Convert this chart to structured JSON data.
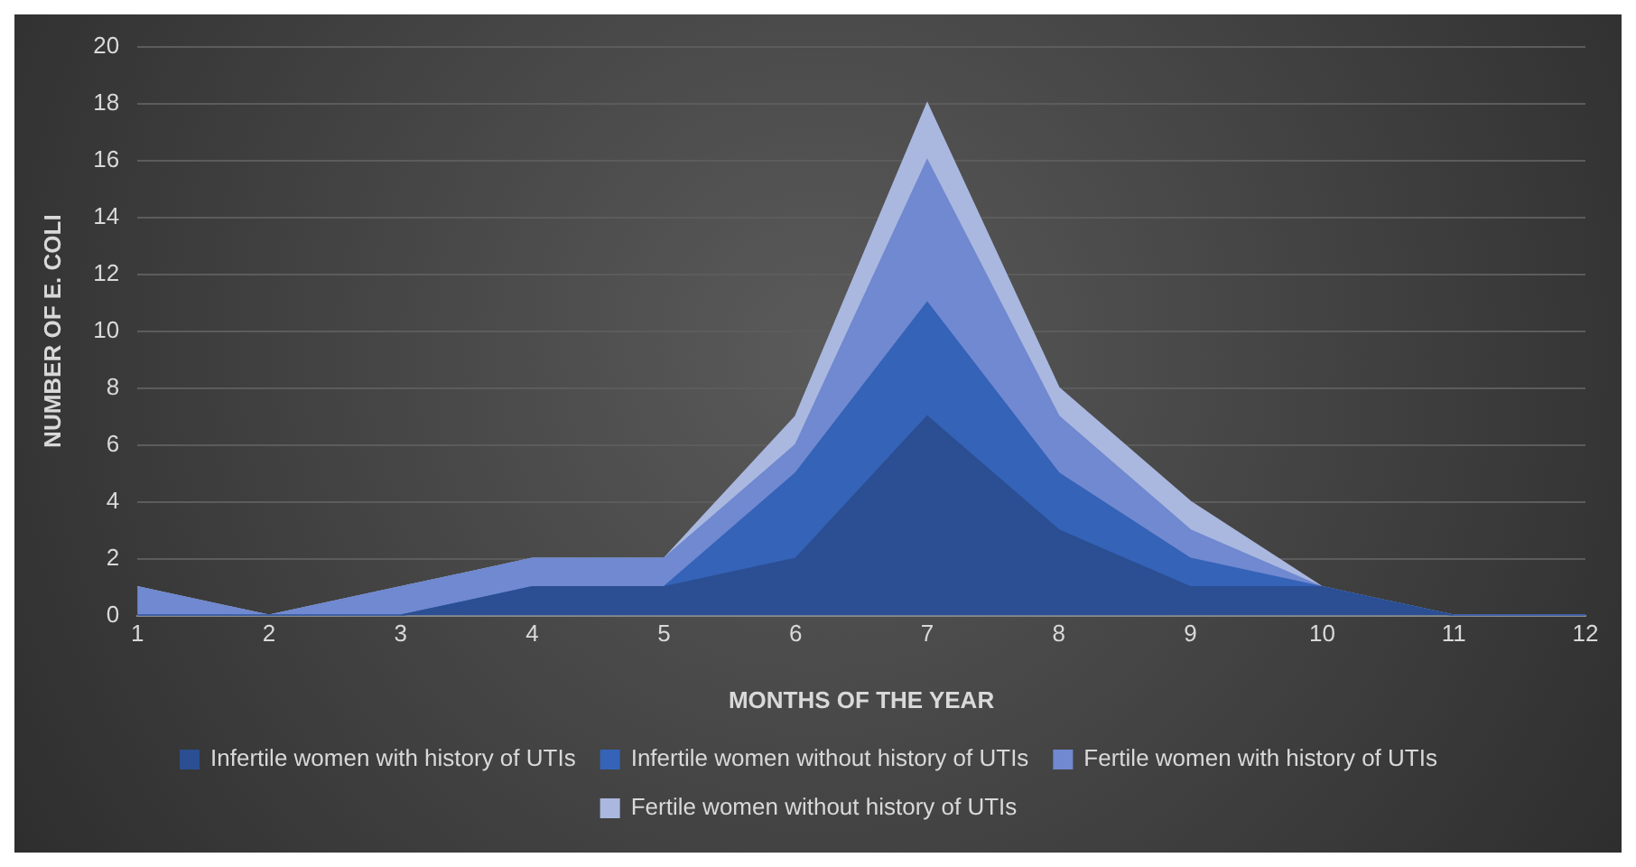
{
  "chart_data": {
    "type": "area",
    "stacked": true,
    "xlabel": "MONTHS OF THE YEAR",
    "ylabel": "NUMBER OF E. COLI",
    "x": [
      1,
      2,
      3,
      4,
      5,
      6,
      7,
      8,
      9,
      10,
      11,
      12
    ],
    "series": [
      {
        "name": "Infertile women with history of UTIs",
        "color": "#2b4f92",
        "values": [
          0,
          0,
          0,
          1,
          1,
          2,
          7,
          3,
          1,
          1,
          0,
          0
        ]
      },
      {
        "name": "Infertile women without history of UTIs",
        "color": "#3563b8",
        "values": [
          0,
          0,
          0,
          0,
          0,
          3,
          4,
          2,
          1,
          0,
          0,
          0
        ]
      },
      {
        "name": "Fertile women with history of UTIs",
        "color": "#7089d0",
        "values": [
          1,
          0,
          1,
          1,
          1,
          1,
          5,
          2,
          1,
          0,
          0,
          0
        ]
      },
      {
        "name": "Fertile women without history of UTIs",
        "color": "#aab8e0",
        "values": [
          0,
          0,
          0,
          0,
          0,
          1,
          2,
          1,
          1,
          0,
          0,
          0
        ]
      }
    ],
    "xlim": [
      1,
      12
    ],
    "xticks": [
      1,
      2,
      3,
      4,
      5,
      6,
      7,
      8,
      9,
      10,
      11,
      12
    ],
    "ylim": [
      0,
      20
    ],
    "yticks": [
      0,
      2,
      4,
      6,
      8,
      10,
      12,
      14,
      16,
      18,
      20
    ],
    "grid": "y",
    "legend": "bottom"
  }
}
